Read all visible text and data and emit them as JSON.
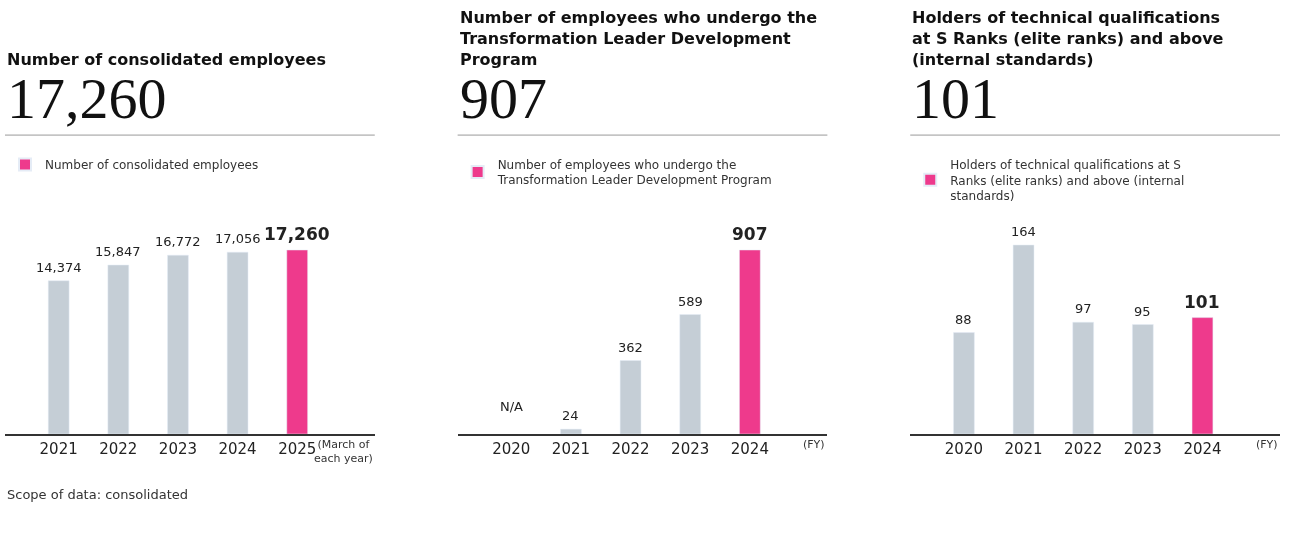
{
  "chart_data": [
    {
      "type": "bar",
      "title": "Number of consolidated employees",
      "subtitle": "17,260",
      "categories": [
        "2021",
        "2022",
        "2023",
        "2024",
        "2025"
      ],
      "series": [
        {
          "name": "Number of consolidated employees",
          "color": "#ee3a8c",
          "colors": [
            "#c5ced6",
            "#c5ced6",
            "#c5ced6",
            "#c5ced6",
            "#ee3a8c"
          ],
          "values": [
            14374,
            15847,
            16772,
            17056,
            17260
          ],
          "value_labels": [
            "14,374",
            "15,847",
            "16,772",
            "17,056",
            "17,260"
          ]
        }
      ],
      "legend": "top left",
      "annotations": [
        "(March of each year)",
        "Scope of data: consolidated"
      ]
    },
    {
      "type": "bar",
      "title": "Number of employees who undergo the Transformation Leader Development Program",
      "subtitle": "907",
      "categories": [
        "2020",
        "2021",
        "2022",
        "2023",
        "2024"
      ],
      "series": [
        {
          "name": "Number of employees who undergo the Transformation Leader Development Program",
          "color": "#ee3a8c",
          "colors": [
            "#c5ced6",
            "#c5ced6",
            "#c5ced6",
            "#c5ced6",
            "#ee3a8c"
          ],
          "values": [
            null,
            24,
            362,
            589,
            907
          ],
          "value_labels": [
            "N/A",
            "24",
            "362",
            "589",
            "907"
          ]
        }
      ],
      "legend": "top left",
      "annotations": [
        "(FY)"
      ]
    },
    {
      "type": "bar",
      "title": "Holders of technical qualifications at S Ranks (elite ranks) and above (internal standards)",
      "subtitle": "101",
      "categories": [
        "2020",
        "2021",
        "2022",
        "2023",
        "2024"
      ],
      "series": [
        {
          "name": "Holders of technical qualifications at S Ranks (elite ranks) and above (internal standards)",
          "color": "#ee3a8c",
          "colors": [
            "#c5ced6",
            "#c5ced6",
            "#c5ced6",
            "#c5ced6",
            "#ee3a8c"
          ],
          "values": [
            88,
            164,
            97,
            95,
            101
          ],
          "value_labels": [
            "88",
            "164",
            "97",
            "95",
            "101"
          ]
        }
      ],
      "legend": "top left",
      "annotations": [
        "(FY)"
      ]
    }
  ]
}
